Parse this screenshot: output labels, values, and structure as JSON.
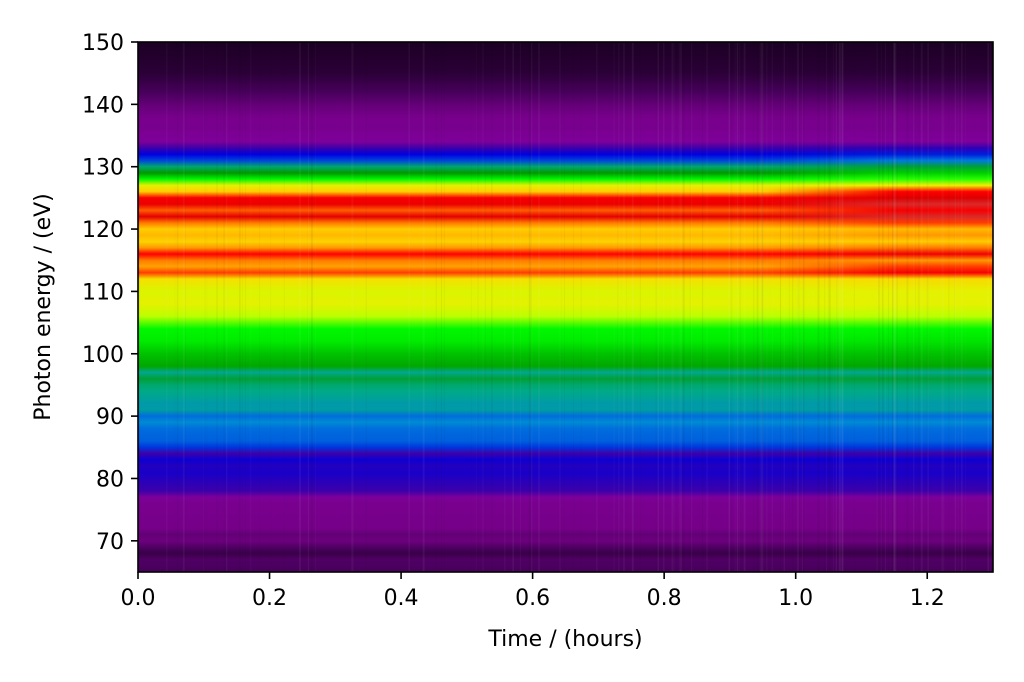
{
  "chart_data": {
    "type": "heatmap",
    "xlabel": "Time / (hours)",
    "ylabel": "Photon energy / (eV)",
    "xlim": [
      0.0,
      1.3
    ],
    "ylim": [
      65,
      150
    ],
    "x_ticks": [
      "0.0",
      "0.2",
      "0.4",
      "0.6",
      "0.8",
      "1.0",
      "1.2"
    ],
    "x_tick_values": [
      0.0,
      0.2,
      0.4,
      0.6,
      0.8,
      1.0,
      1.2
    ],
    "y_ticks": [
      "70",
      "80",
      "90",
      "100",
      "110",
      "120",
      "130",
      "140",
      "150"
    ],
    "y_tick_values": [
      70,
      80,
      90,
      100,
      110,
      120,
      130,
      140,
      150
    ],
    "colormap": "nipy_spectral",
    "grid": false,
    "colorbar": false,
    "intensity_profile": {
      "description_units": "normalized intensity (0-1) vs photon energy (eV)",
      "energy": [
        65,
        67,
        68,
        69,
        70,
        71,
        72,
        74,
        76,
        77,
        78,
        79,
        80,
        81,
        82,
        83,
        84,
        85,
        86,
        88,
        89,
        90,
        91,
        92,
        93,
        94,
        95,
        96,
        97,
        98,
        100,
        102,
        104,
        106,
        108,
        110,
        112,
        113,
        114,
        115,
        116,
        117,
        118,
        119,
        120,
        121,
        122,
        123,
        124,
        125,
        126,
        127,
        128,
        129,
        130,
        131,
        132,
        133,
        134,
        135,
        136,
        138,
        140,
        142,
        145,
        150
      ],
      "intensity_early": [
        0.05,
        0.06,
        0.04,
        0.06,
        0.09,
        0.08,
        0.1,
        0.11,
        0.12,
        0.15,
        0.2,
        0.21,
        0.22,
        0.23,
        0.22,
        0.24,
        0.2,
        0.29,
        0.32,
        0.33,
        0.36,
        0.33,
        0.41,
        0.4,
        0.43,
        0.45,
        0.46,
        0.48,
        0.44,
        0.52,
        0.56,
        0.62,
        0.64,
        0.7,
        0.74,
        0.73,
        0.77,
        0.88,
        0.84,
        0.86,
        0.9,
        0.85,
        0.79,
        0.82,
        0.8,
        0.86,
        0.94,
        0.87,
        0.93,
        0.91,
        0.8,
        0.74,
        0.64,
        0.5,
        0.46,
        0.3,
        0.25,
        0.2,
        0.15,
        0.14,
        0.12,
        0.11,
        0.08,
        0.05,
        0.03,
        0.02
      ],
      "intensity_late": [
        0.05,
        0.06,
        0.04,
        0.06,
        0.09,
        0.08,
        0.1,
        0.11,
        0.12,
        0.15,
        0.2,
        0.21,
        0.22,
        0.23,
        0.22,
        0.24,
        0.2,
        0.29,
        0.32,
        0.33,
        0.36,
        0.33,
        0.41,
        0.4,
        0.43,
        0.45,
        0.46,
        0.48,
        0.44,
        0.52,
        0.56,
        0.61,
        0.64,
        0.7,
        0.74,
        0.74,
        0.78,
        0.91,
        0.88,
        0.85,
        0.92,
        0.86,
        0.8,
        0.85,
        0.82,
        0.88,
        0.96,
        0.91,
        0.96,
        0.95,
        0.9,
        0.75,
        0.66,
        0.58,
        0.48,
        0.34,
        0.27,
        0.21,
        0.15,
        0.14,
        0.12,
        0.11,
        0.08,
        0.05,
        0.03,
        0.02
      ],
      "transition_time": [
        0.95,
        1.15
      ]
    }
  }
}
